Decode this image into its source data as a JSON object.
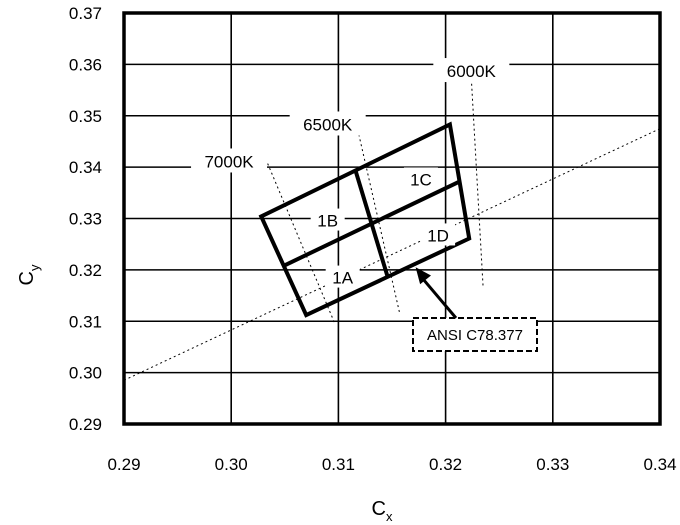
{
  "chart_data": {
    "type": "scatter",
    "xlabel": {
      "main": "C",
      "sub": "x"
    },
    "ylabel": {
      "main": "C",
      "sub": "y"
    },
    "xlim": [
      0.29,
      0.34
    ],
    "ylim": [
      0.29,
      0.37
    ],
    "xticks": [
      "0.29",
      "0.30",
      "0.31",
      "0.32",
      "0.33",
      "0.34"
    ],
    "yticks": [
      "0.29",
      "0.30",
      "0.31",
      "0.32",
      "0.33",
      "0.34",
      "0.35",
      "0.36",
      "0.37"
    ],
    "grid": true,
    "quadrangle": {
      "corners": [
        [
          0.3028,
          0.3304
        ],
        [
          0.3204,
          0.3483
        ],
        [
          0.3222,
          0.3261
        ],
        [
          0.307,
          0.3112
        ]
      ],
      "inner_lines": [
        {
          "from": [
            0.3049,
            0.3208
          ],
          "to": [
            0.3213,
            0.3372
          ]
        },
        {
          "from": [
            0.3116,
            0.3393
          ],
          "to": [
            0.3146,
            0.3186
          ]
        }
      ]
    },
    "bins": [
      {
        "label": "1A",
        "x": 0.3104,
        "y": 0.3185
      },
      {
        "label": "1B",
        "x": 0.309,
        "y": 0.3296
      },
      {
        "label": "1C",
        "x": 0.3177,
        "y": 0.3376
      },
      {
        "label": "1D",
        "x": 0.3193,
        "y": 0.3267
      }
    ],
    "cct_lines": [
      {
        "label": "7000K",
        "from": [
          0.3034,
          0.3407
        ],
        "to": [
          0.3097,
          0.3094
        ],
        "label_pos": [
          0.2998,
          0.3411
        ]
      },
      {
        "label": "6500K",
        "from": [
          0.3118,
          0.3473
        ],
        "to": [
          0.3157,
          0.3117
        ],
        "label_pos": [
          0.309,
          0.3483
        ]
      },
      {
        "label": "6000K",
        "from": [
          0.3224,
          0.3572
        ],
        "to": [
          0.3235,
          0.3166
        ],
        "label_pos": [
          0.3224,
          0.3587
        ]
      }
    ],
    "planckian_locus": [
      [
        0.29,
        0.2985
      ],
      [
        0.34,
        0.3475
      ]
    ],
    "callout": {
      "text": "ANSI C78.377",
      "arrow_to": [
        0.3172,
        0.3205
      ]
    }
  }
}
